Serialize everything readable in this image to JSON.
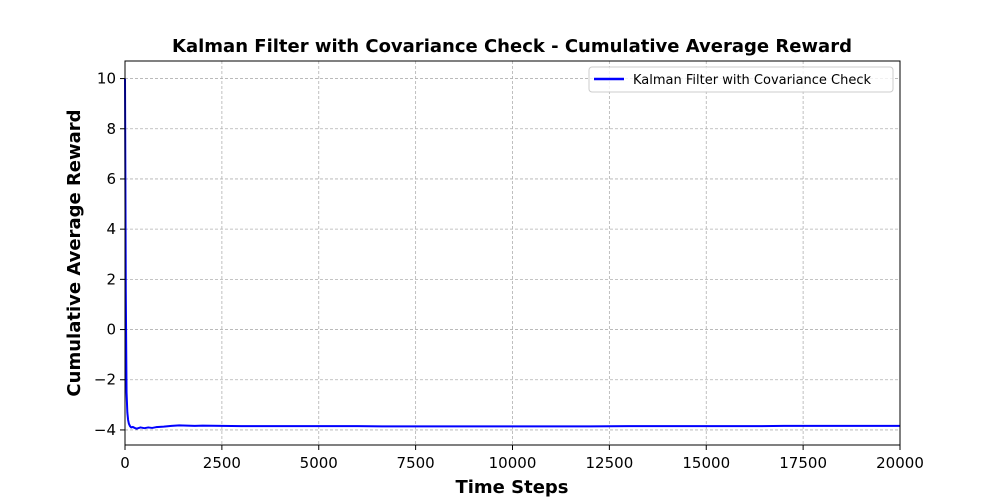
{
  "chart_data": {
    "type": "line",
    "title": "Kalman Filter with Covariance Check - Cumulative Average Reward",
    "xlabel": "Time Steps",
    "ylabel": "Cumulative Average Reward",
    "xlim": [
      0,
      20000
    ],
    "ylim": [
      -4.6,
      10.7
    ],
    "x_ticks": [
      0,
      2500,
      5000,
      7500,
      10000,
      12500,
      15000,
      17500,
      20000
    ],
    "x_tick_labels": [
      "0",
      "2500",
      "5000",
      "7500",
      "10000",
      "12500",
      "15000",
      "17500",
      "20000"
    ],
    "y_ticks": [
      -4,
      -2,
      0,
      2,
      4,
      6,
      8,
      10
    ],
    "y_tick_labels": [
      "−4",
      "−2",
      "0",
      "2",
      "4",
      "6",
      "8",
      "10"
    ],
    "grid": true,
    "legend_position": "top-right",
    "series": [
      {
        "name": "Kalman Filter with Covariance Check",
        "color": "#0000ff",
        "x": [
          0,
          10,
          20,
          40,
          60,
          80,
          100,
          130,
          160,
          200,
          250,
          300,
          400,
          500,
          600,
          700,
          800,
          1000,
          1200,
          1400,
          1600,
          1800,
          2000,
          2500,
          3000,
          4000,
          5000,
          6000,
          7000,
          8000,
          9000,
          10000,
          11000,
          12000,
          13000,
          14000,
          15000,
          16000,
          17000,
          18000,
          19000,
          20000
        ],
        "y": [
          10,
          6.0,
          1.5,
          -2.5,
          -3.3,
          -3.6,
          -3.75,
          -3.85,
          -3.9,
          -3.88,
          -3.92,
          -3.95,
          -3.9,
          -3.93,
          -3.9,
          -3.92,
          -3.89,
          -3.87,
          -3.84,
          -3.82,
          -3.83,
          -3.84,
          -3.83,
          -3.84,
          -3.85,
          -3.85,
          -3.85,
          -3.85,
          -3.86,
          -3.86,
          -3.86,
          -3.86,
          -3.86,
          -3.86,
          -3.85,
          -3.85,
          -3.85,
          -3.85,
          -3.84,
          -3.84,
          -3.84,
          -3.84
        ]
      }
    ]
  }
}
